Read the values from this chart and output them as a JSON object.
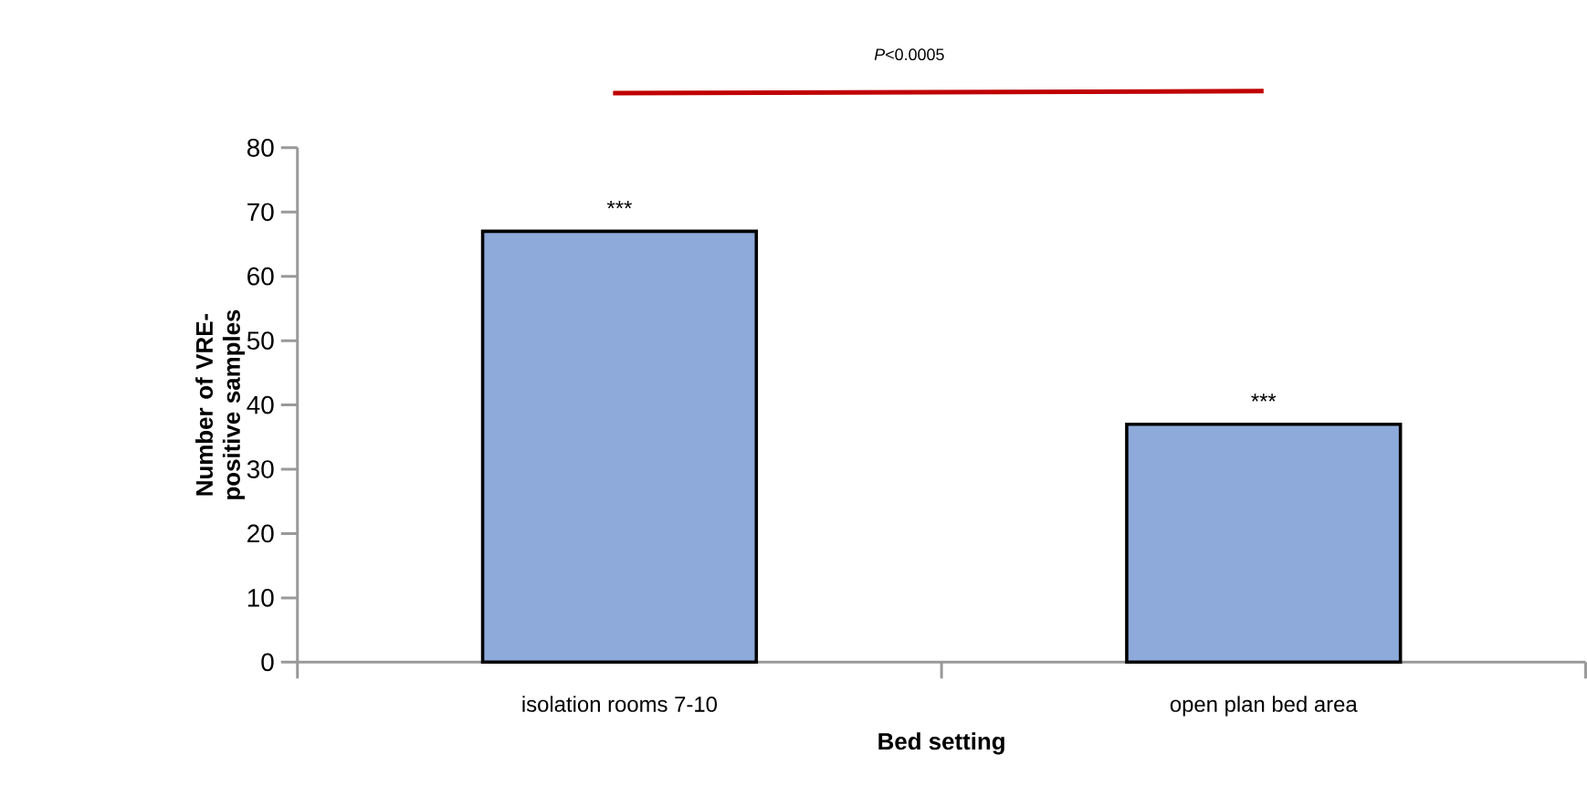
{
  "chart_data": {
    "type": "bar",
    "categories": [
      "isolation rooms 7-10",
      "open plan bed area"
    ],
    "values": [
      67,
      37
    ],
    "color": "#8eaadb",
    "xlabel": "Bed setting",
    "ylabel": "Number of VRE-positive samples",
    "ylim": [
      0,
      80
    ],
    "yticks": [
      0,
      10,
      20,
      30,
      40,
      50,
      60,
      70,
      80
    ],
    "grid": false,
    "annotations": [
      {
        "text": "***",
        "x": "isolation rooms 7-10",
        "y": 67
      },
      {
        "text": "***",
        "x": "open plan bed area",
        "y": 37
      },
      "*P*<0.0005"
    ]
  }
}
